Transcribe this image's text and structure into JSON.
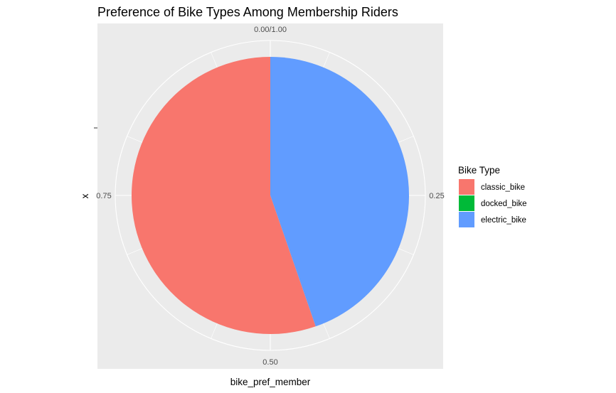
{
  "chart_data": {
    "type": "pie",
    "title": "Preference of Bike Types Among Membership Riders",
    "xlabel": "bike_pref_member",
    "ylabel": "x",
    "angular_ticks": [
      {
        "value": 0.0,
        "label": "0.00/1.00"
      },
      {
        "value": 0.25,
        "label": "0.25"
      },
      {
        "value": 0.5,
        "label": "0.50"
      },
      {
        "value": 0.75,
        "label": "0.75"
      }
    ],
    "legend": {
      "title": "Bike Type",
      "placement": "right"
    },
    "slices": [
      {
        "name": "electric_bike",
        "value": 0.447,
        "color": "#619CFF"
      },
      {
        "name": "docked_bike",
        "value": 0.0,
        "color": "#00BA38"
      },
      {
        "name": "classic_bike",
        "value": 0.553,
        "color": "#F8766D"
      }
    ],
    "legend_entries": [
      {
        "name": "classic_bike",
        "color": "#F8766D"
      },
      {
        "name": "docked_bike",
        "color": "#00BA38"
      },
      {
        "name": "electric_bike",
        "color": "#619CFF"
      }
    ],
    "panel_background": "#EBEBEB",
    "grid_color": "#FFFFFF",
    "grid": true
  }
}
